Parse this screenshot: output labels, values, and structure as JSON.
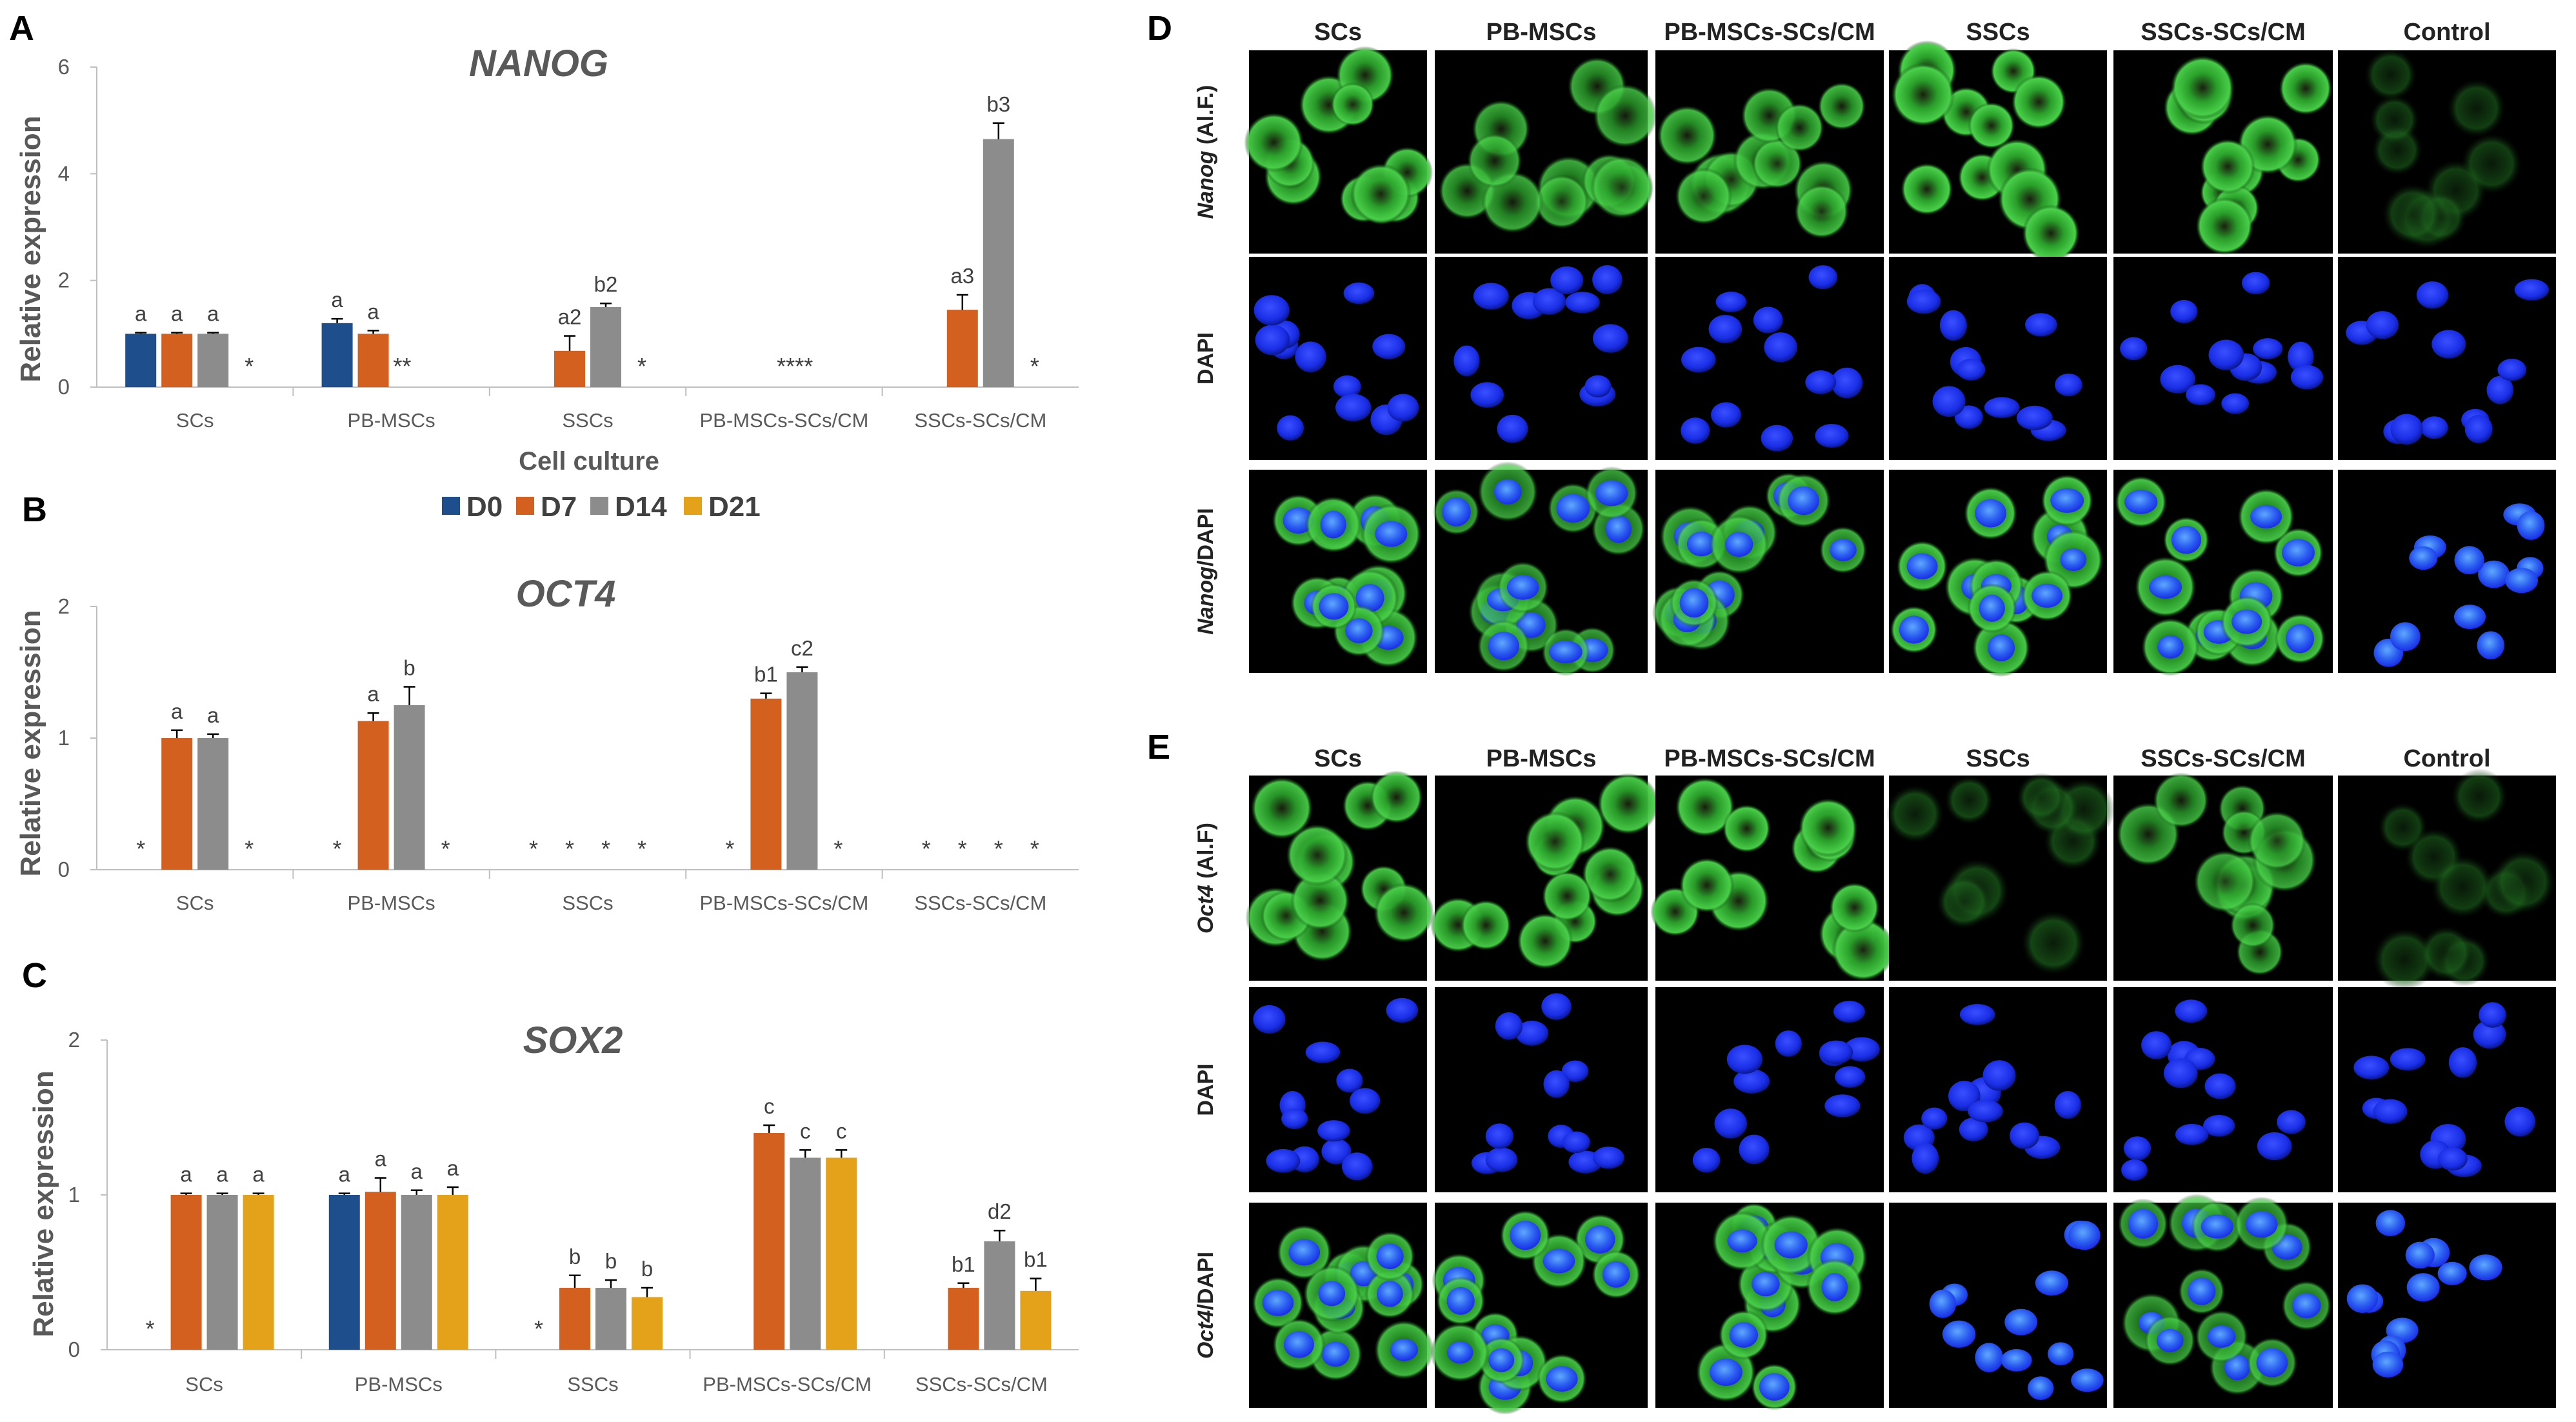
{
  "colors": {
    "D0": "#1f4e8c",
    "D7": "#d4601f",
    "D14": "#8c8c8c",
    "D21": "#e3a21a",
    "axis": "#bfbfbf",
    "text": "#595959",
    "gfp": "#33c233",
    "dapi": "#1a2ee6"
  },
  "legend": [
    "D0",
    "D7",
    "D14",
    "D21"
  ],
  "x_axis_title": "Cell culture",
  "chart_data": [
    {
      "type": "bar",
      "panel": "A",
      "title": "NANOG",
      "ylabel": "Relative expression",
      "ylim": [
        0,
        6
      ],
      "yticks": [
        "0",
        "2",
        "4",
        "6"
      ],
      "categories": [
        "SCs",
        "PB-MSCs",
        "SSCs",
        "PB-MSCs-SCs/CM",
        "SSCs-SCs/CM"
      ],
      "series": [
        {
          "name": "D0",
          "values": [
            1.0,
            1.2,
            null,
            null,
            null
          ],
          "errors": [
            0.02,
            0.08,
            0,
            0,
            0
          ],
          "labels": [
            "a",
            "a",
            "",
            "",
            ""
          ]
        },
        {
          "name": "D7",
          "values": [
            1.0,
            1.0,
            0.68,
            null,
            1.45
          ],
          "errors": [
            0.02,
            0.06,
            0.28,
            0,
            0.28
          ],
          "labels": [
            "a",
            "a",
            "a2",
            "",
            "a3"
          ]
        },
        {
          "name": "D14",
          "values": [
            1.0,
            null,
            1.5,
            null,
            4.65
          ],
          "errors": [
            0.02,
            0,
            0.07,
            0,
            0.3
          ],
          "labels": [
            "a",
            "",
            "b2",
            "",
            "b3"
          ]
        },
        {
          "name": "D21",
          "values": [
            null,
            null,
            null,
            null,
            null
          ],
          "errors": [
            0,
            0,
            0,
            0,
            0
          ],
          "labels": [
            "",
            "",
            "",
            "",
            ""
          ]
        }
      ],
      "stars": [
        "*",
        "**",
        "*",
        "****",
        "*"
      ],
      "show_x_title": true
    },
    {
      "type": "bar",
      "panel": "B",
      "title": "OCT4",
      "ylabel": "Relative expression",
      "ylim": [
        0,
        2
      ],
      "yticks": [
        "0",
        "1",
        "2"
      ],
      "categories": [
        "SCs",
        "PB-MSCs",
        "SSCs",
        "PB-MSCs-SCs/CM",
        "SSCs-SCs/CM"
      ],
      "series": [
        {
          "name": "D0",
          "values": [
            null,
            null,
            null,
            null,
            null
          ],
          "errors": [
            0,
            0,
            0,
            0,
            0
          ],
          "labels": [
            "",
            "",
            "",
            "",
            ""
          ]
        },
        {
          "name": "D7",
          "values": [
            1.0,
            1.13,
            null,
            1.3,
            null
          ],
          "errors": [
            0.06,
            0.06,
            0,
            0.04,
            0
          ],
          "labels": [
            "a",
            "a",
            "",
            "b1",
            ""
          ]
        },
        {
          "name": "D14",
          "values": [
            1.0,
            1.25,
            null,
            1.5,
            null
          ],
          "errors": [
            0.03,
            0.14,
            0,
            0.04,
            0
          ],
          "labels": [
            "a",
            "b",
            "",
            "c2",
            ""
          ]
        },
        {
          "name": "D21",
          "values": [
            null,
            null,
            null,
            null,
            null
          ],
          "errors": [
            0,
            0,
            0,
            0,
            0
          ],
          "labels": [
            "",
            "",
            "",
            "",
            ""
          ]
        }
      ],
      "stars_per_slot": [
        [
          "*",
          "",
          "",
          "*"
        ],
        [
          "*",
          "",
          "",
          "*"
        ],
        [
          "*",
          "*",
          "*",
          "*"
        ],
        [
          "*",
          "",
          "",
          "*"
        ],
        [
          "*",
          "*",
          "*",
          "*"
        ]
      ],
      "show_x_title": false
    },
    {
      "type": "bar",
      "panel": "C",
      "title": "SOX2",
      "ylabel": "Relative expression",
      "ylim": [
        0,
        2
      ],
      "yticks": [
        "0",
        "1",
        "2"
      ],
      "categories": [
        "SCs",
        "PB-MSCs",
        "SSCs",
        "PB-MSCs-SCs/CM",
        "SSCs-SCs/CM"
      ],
      "series": [
        {
          "name": "D0",
          "values": [
            null,
            1.0,
            null,
            null,
            null
          ],
          "errors": [
            0,
            0.01,
            0,
            0,
            0
          ],
          "labels": [
            "",
            "a",
            "",
            "",
            ""
          ]
        },
        {
          "name": "D7",
          "values": [
            1.0,
            1.02,
            0.4,
            1.4,
            0.4
          ],
          "errors": [
            0.01,
            0.09,
            0.08,
            0.05,
            0.03
          ],
          "labels": [
            "a",
            "a",
            "b",
            "c",
            "b1"
          ]
        },
        {
          "name": "D14",
          "values": [
            1.0,
            1.0,
            0.4,
            1.24,
            0.7
          ],
          "errors": [
            0.01,
            0.03,
            0.05,
            0.05,
            0.07
          ],
          "labels": [
            "a",
            "a",
            "b",
            "c",
            "d2"
          ]
        },
        {
          "name": "D21",
          "values": [
            1.0,
            1.0,
            0.34,
            1.24,
            0.38
          ],
          "errors": [
            0.01,
            0.05,
            0.06,
            0.05,
            0.08
          ],
          "labels": [
            "a",
            "a",
            "b",
            "c",
            "b1"
          ]
        }
      ],
      "stars_per_slot": [
        [
          "*",
          "",
          "",
          ""
        ],
        [
          "",
          "",
          "",
          ""
        ],
        [
          "*",
          "",
          "",
          ""
        ],
        [
          "",
          "",
          "",
          ""
        ],
        [
          "",
          "",
          "",
          ""
        ]
      ],
      "show_x_title": false
    }
  ],
  "panel_D": {
    "letter": "D",
    "columns": [
      "SCs",
      "PB-MSCs",
      "PB-MSCs-SCs/CM",
      "SSCs",
      "SSCs-SCs/CM",
      "Control"
    ],
    "rows": [
      {
        "italic": "Nanog",
        "rest": " (Al.F.)"
      },
      {
        "italic": "",
        "rest": "DAPI"
      },
      {
        "italic": "Nanog",
        "rest": "/DAPI"
      }
    ]
  },
  "panel_E": {
    "letter": "E",
    "columns": [
      "SCs",
      "PB-MSCs",
      "PB-MSCs-SCs/CM",
      "SSCs",
      "SSCs-SCs/CM",
      "Control"
    ],
    "rows": [
      {
        "italic": "Oct4",
        "rest": " (Al.F)"
      },
      {
        "italic": "",
        "rest": "DAPI"
      },
      {
        "italic": "Oct4",
        "rest": "/DAPI"
      }
    ]
  }
}
